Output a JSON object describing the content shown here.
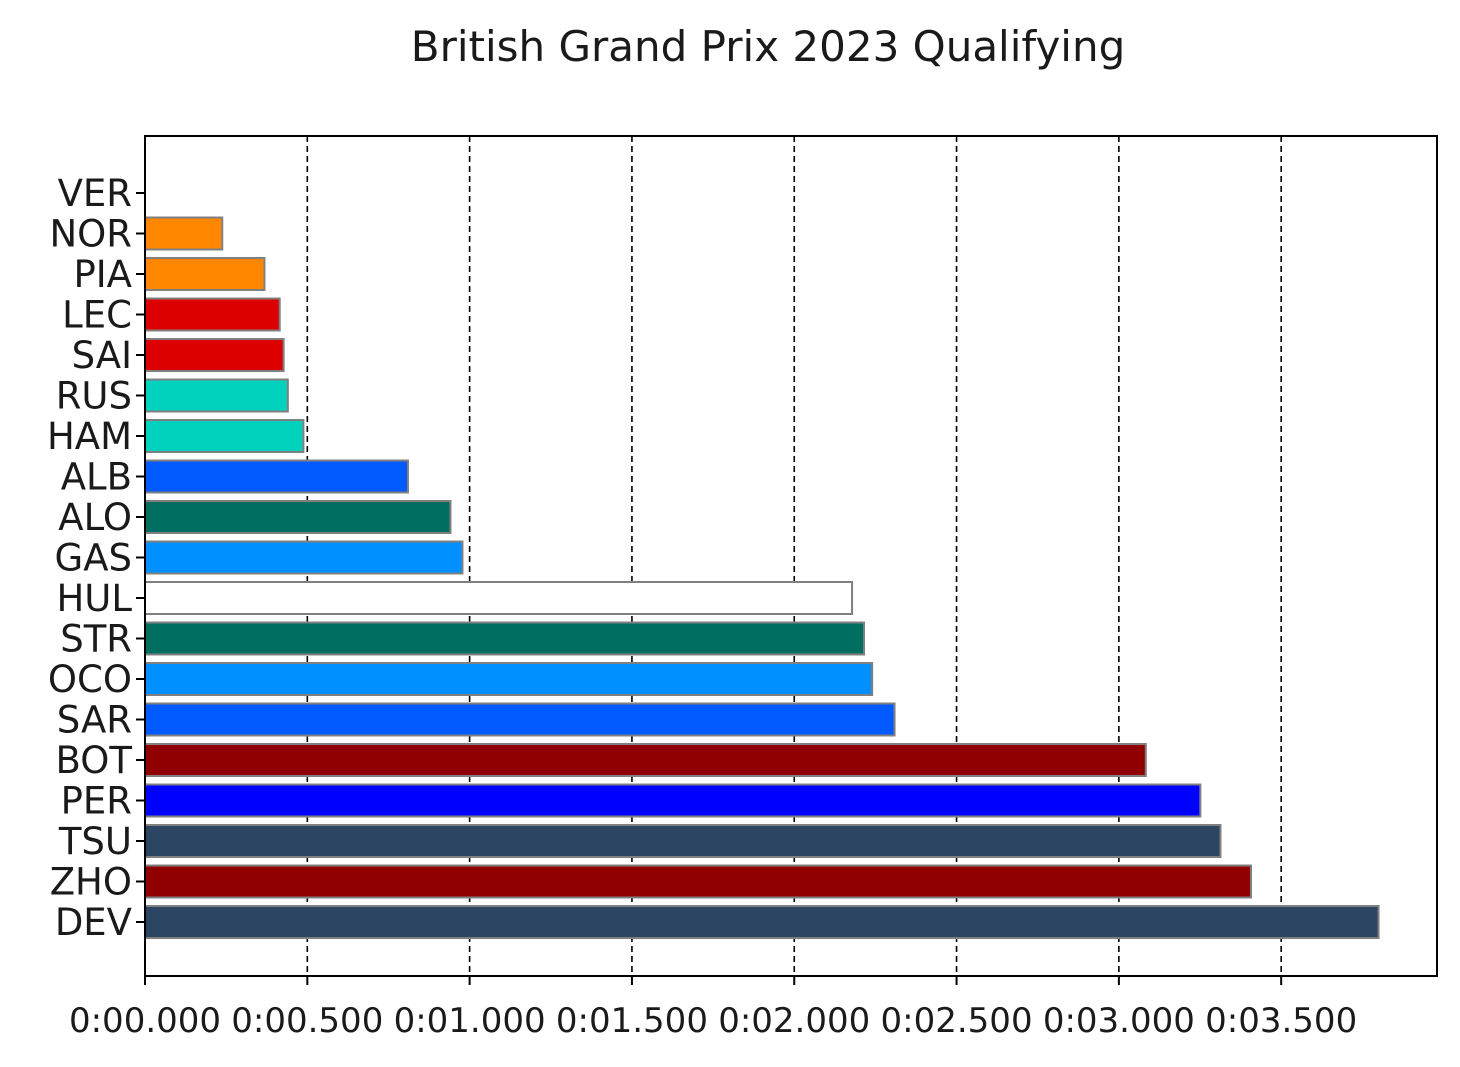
{
  "chart_data": {
    "type": "bar",
    "orientation": "horizontal",
    "title": "British Grand Prix 2023 Qualifying",
    "xlabel": "",
    "ylabel": "",
    "x_unit": "seconds",
    "xlim": [
      0,
      3.98
    ],
    "x_ticks": [
      0,
      0.5,
      1.0,
      1.5,
      2.0,
      2.5,
      3.0,
      3.5
    ],
    "x_tick_labels": [
      "0:00.000",
      "0:00.500",
      "0:01.000",
      "0:01.500",
      "0:02.000",
      "0:02.500",
      "0:03.000",
      "0:03.500"
    ],
    "grid": "x-axis dashed",
    "categories": [
      "VER",
      "NOR",
      "PIA",
      "LEC",
      "SAI",
      "RUS",
      "HAM",
      "ALB",
      "ALO",
      "GAS",
      "HUL",
      "STR",
      "OCO",
      "SAR",
      "BOT",
      "PER",
      "TSU",
      "ZHO",
      "DEV"
    ],
    "values": [
      0.0,
      0.238,
      0.368,
      0.415,
      0.427,
      0.44,
      0.488,
      0.81,
      0.941,
      0.978,
      2.178,
      2.215,
      2.24,
      2.309,
      3.083,
      3.251,
      3.313,
      3.407,
      3.8
    ],
    "colors": [
      "#3671C6",
      "#FF8700",
      "#FF8700",
      "#DC0000",
      "#DC0000",
      "#00D2BE",
      "#00D2BE",
      "#005AFF",
      "#006F62",
      "#0090FF",
      "#FFFFFF",
      "#006F62",
      "#0090FF",
      "#005AFF",
      "#900000",
      "#0000FF",
      "#2B4562",
      "#900000",
      "#2B4562"
    ]
  }
}
